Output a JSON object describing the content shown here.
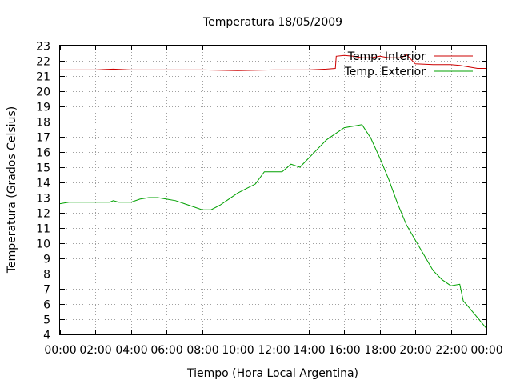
{
  "chart_data": {
    "type": "line",
    "title": "Temperatura 18/05/2009",
    "xlabel": "Tiempo (Hora Local Argentina)",
    "ylabel": "Temperatura (Grados Celsius)",
    "xlim": [
      0,
      24
    ],
    "ylim": [
      4,
      23
    ],
    "grid": true,
    "legend_position": "top-right",
    "x_tick_labels": [
      "00:00",
      "02:00",
      "04:00",
      "06:00",
      "08:00",
      "10:00",
      "12:00",
      "14:00",
      "16:00",
      "18:00",
      "20:00",
      "22:00",
      "00:00"
    ],
    "y_tick_labels": [
      "4",
      "5",
      "6",
      "7",
      "8",
      "9",
      "10",
      "11",
      "12",
      "13",
      "14",
      "15",
      "16",
      "17",
      "18",
      "19",
      "20",
      "21",
      "22",
      "23"
    ],
    "series": [
      {
        "name": "Temp. Interior",
        "color": "#cc0000",
        "x": [
          0,
          2,
          3,
          4,
          6,
          8,
          10,
          12,
          14,
          15,
          15.5,
          15.55,
          16,
          16.5,
          17,
          17.5,
          18,
          18.5,
          19,
          19.2,
          19.5,
          20,
          21,
          22,
          22.5,
          23,
          23.5,
          24
        ],
        "y": [
          21.4,
          21.4,
          21.45,
          21.4,
          21.4,
          21.4,
          21.35,
          21.4,
          21.4,
          21.45,
          21.5,
          22.3,
          22.35,
          22.3,
          22.2,
          22.2,
          22.3,
          22.2,
          22.2,
          22.2,
          22.4,
          21.8,
          21.75,
          21.75,
          21.7,
          21.6,
          21.5,
          21.5
        ]
      },
      {
        "name": "Temp. Exterior",
        "color": "#00a000",
        "x": [
          0,
          0.5,
          1,
          2,
          2.8,
          3,
          3.3,
          4,
          4.5,
          5,
          5.5,
          6,
          6.5,
          7,
          7.5,
          8,
          8.5,
          9,
          9.5,
          10,
          10.5,
          11,
          11.5,
          12,
          12.5,
          13,
          13.5,
          14,
          14.5,
          15,
          15.5,
          16,
          16.5,
          17,
          17.5,
          18,
          18.5,
          19,
          19.5,
          20,
          20.5,
          21,
          21.5,
          22,
          22.5,
          22.7,
          23,
          23.5,
          24
        ],
        "y": [
          12.6,
          12.7,
          12.7,
          12.7,
          12.7,
          12.8,
          12.7,
          12.7,
          12.9,
          13.0,
          13.0,
          12.9,
          12.8,
          12.6,
          12.4,
          12.2,
          12.2,
          12.5,
          12.9,
          13.3,
          13.6,
          13.9,
          14.7,
          14.7,
          14.7,
          15.2,
          15.0,
          15.6,
          16.2,
          16.8,
          17.2,
          17.6,
          17.7,
          17.8,
          16.9,
          15.6,
          14.2,
          12.6,
          11.2,
          10.2,
          9.2,
          8.2,
          7.6,
          7.2,
          7.3,
          6.2,
          5.8,
          5.1,
          4.4
        ]
      }
    ]
  }
}
